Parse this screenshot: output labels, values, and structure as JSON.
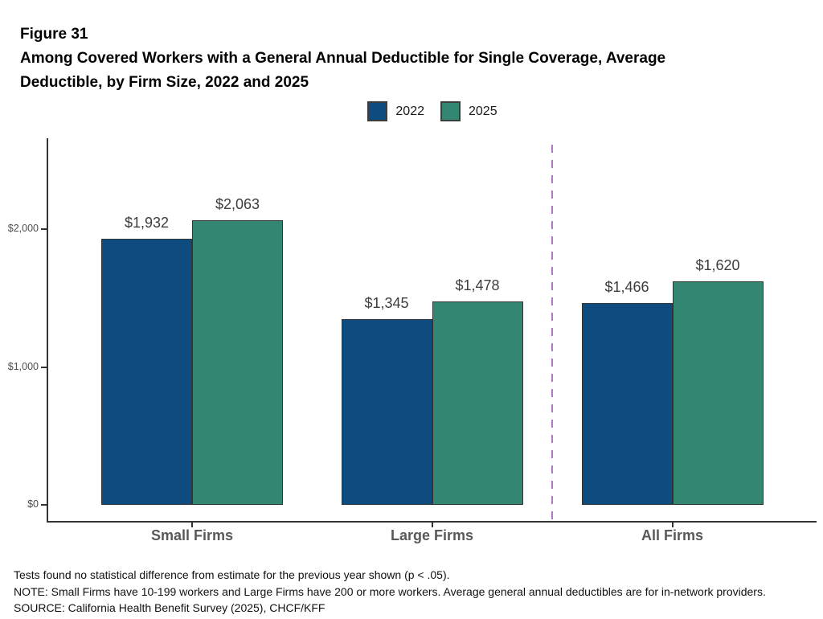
{
  "figure": {
    "label": "Figure 31",
    "title_line1": "Among Covered Workers with a General Annual Deductible for Single Coverage, Average",
    "title_line2": "Deductible, by Firm Size, 2022 and 2025"
  },
  "chart_data": {
    "type": "bar",
    "title": "Among Covered Workers with a General Annual Deductible for Single Coverage, Average Deductible, by Firm Size, 2022 and 2025",
    "categories": [
      "Small Firms",
      "Large Firms",
      "All Firms"
    ],
    "series": [
      {
        "name": "2022",
        "color": "#0e4c80",
        "values": [
          1932,
          1345,
          1466
        ],
        "labels": [
          "$1,932",
          "$1,345",
          "$1,466"
        ]
      },
      {
        "name": "2025",
        "color": "#338672",
        "values": [
          2063,
          1478,
          1620
        ],
        "labels": [
          "$2,063",
          "$1,478",
          "$1,620"
        ]
      }
    ],
    "y_ticks": [
      {
        "value": 0,
        "label": "$0"
      },
      {
        "value": 1000,
        "label": "$1,000"
      },
      {
        "value": 2000,
        "label": "$2,000"
      }
    ],
    "ylim": [
      0,
      2660
    ],
    "xlabel": "",
    "ylabel": "",
    "grid": false,
    "legend_position": "top-center",
    "separator": {
      "between": [
        "Large Firms",
        "All Firms"
      ],
      "style": "dashed",
      "color": "#af7ac5"
    }
  },
  "notes": {
    "line1": "Tests found no statistical difference from estimate for the previous year shown (p < .05).",
    "line2": "NOTE: Small Firms have 10-199 workers and Large Firms have 200 or more workers. Average general annual deductibles are for in-network providers.",
    "line3": "SOURCE: California Health Benefit Survey (2025), CHCF/KFF"
  },
  "colors": {
    "axis": "#333333",
    "bar_border": "#333333",
    "tick_label": "#4d4d4d",
    "category_label": "#595959",
    "value_label": "#3d3d3d",
    "title_text": "#000000"
  }
}
